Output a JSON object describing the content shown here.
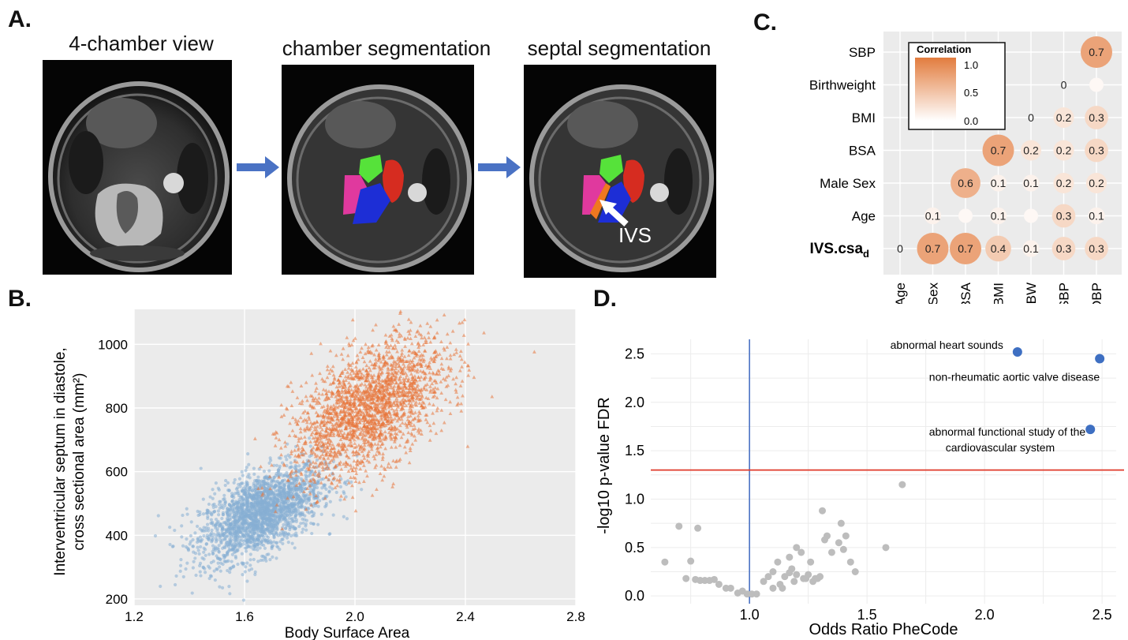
{
  "panel_a": {
    "label": "A.",
    "images": [
      {
        "title": "4-chamber view"
      },
      {
        "title": "chamber segmentation"
      },
      {
        "title": "septal segmentation",
        "arrow_label": "IVS"
      }
    ],
    "seg_colors": {
      "ra": "#e0399e",
      "la": "#d62c20",
      "lv_green": "#56e23a",
      "rv": "#1d2ed6",
      "septum": "#f07820",
      "arrow": "#4a72c4"
    }
  },
  "panel_b": {
    "label": "B."
  },
  "panel_c": {
    "label": "C."
  },
  "panel_d": {
    "label": "D."
  },
  "chart_data": [
    {
      "type": "scatter",
      "panel": "B.",
      "xlabel": "Body Surface Area",
      "ylabel": "Interventricular septum in diastole, cross sectional area (mm²)",
      "ylabel_lines": [
        "Interventricular septum in diastole,",
        "cross sectional area (mm²)"
      ],
      "xlim": [
        1.2,
        2.8
      ],
      "ylim": [
        180,
        1110
      ],
      "xticks": [
        1.2,
        1.6,
        2.0,
        2.4,
        2.8
      ],
      "xtick_labels": [
        "1.2",
        "1.6",
        "2.0",
        "2.4",
        "2.8"
      ],
      "yticks": [
        200,
        400,
        600,
        800,
        1000
      ],
      "ytick_labels": [
        "200",
        "400",
        "600",
        "800",
        "1000"
      ],
      "grid": true,
      "series": [
        {
          "color": "#86aed3",
          "marker": "circle",
          "center": [
            1.66,
            470
          ],
          "spread": [
            0.11,
            75
          ],
          "n_points": 2200
        },
        {
          "color": "#e8773d",
          "marker": "triangle",
          "center": [
            2.05,
            800
          ],
          "spread": [
            0.14,
            110
          ],
          "n_points": 2200
        }
      ]
    },
    {
      "type": "heatmap",
      "panel": "C.",
      "legend_title": "Correlation",
      "legend_ticks": [
        "1.0",
        "0.5",
        "0.0"
      ],
      "legend_range": [
        0,
        1
      ],
      "rows": [
        "SBP",
        "Birthweight",
        "BMI",
        "BSA",
        "Male Sex",
        "Age",
        "IVS.csa"
      ],
      "row_subscript": {
        "6": "d"
      },
      "columns": [
        "Age",
        "Sex",
        "BSA",
        "BMI",
        "BW",
        "SBP",
        "DBP"
      ],
      "cells": [
        {
          "row": 0,
          "col": 6,
          "value": 0.7,
          "label": "0.7"
        },
        {
          "row": 1,
          "col": 5,
          "value": 0.0,
          "label": "0"
        },
        {
          "row": 1,
          "col": 6,
          "value": 0.05,
          "label": ""
        },
        {
          "row": 2,
          "col": 4,
          "value": 0.0,
          "label": "0"
        },
        {
          "row": 2,
          "col": 5,
          "value": 0.2,
          "label": "0.2"
        },
        {
          "row": 2,
          "col": 6,
          "value": 0.3,
          "label": "0.3"
        },
        {
          "row": 3,
          "col": 3,
          "value": 0.7,
          "label": "0.7"
        },
        {
          "row": 3,
          "col": 4,
          "value": 0.2,
          "label": "0.2"
        },
        {
          "row": 3,
          "col": 5,
          "value": 0.2,
          "label": "0.2"
        },
        {
          "row": 3,
          "col": 6,
          "value": 0.3,
          "label": "0.3"
        },
        {
          "row": 4,
          "col": 2,
          "value": 0.6,
          "label": "0.6"
        },
        {
          "row": 4,
          "col": 3,
          "value": 0.1,
          "label": "0.1"
        },
        {
          "row": 4,
          "col": 4,
          "value": 0.1,
          "label": "0.1"
        },
        {
          "row": 4,
          "col": 5,
          "value": 0.2,
          "label": "0.2"
        },
        {
          "row": 4,
          "col": 6,
          "value": 0.2,
          "label": "0.2"
        },
        {
          "row": 5,
          "col": 1,
          "value": 0.1,
          "label": "0.1"
        },
        {
          "row": 5,
          "col": 2,
          "value": 0.05,
          "label": ""
        },
        {
          "row": 5,
          "col": 3,
          "value": 0.1,
          "label": "0.1"
        },
        {
          "row": 5,
          "col": 4,
          "value": 0.05,
          "label": ""
        },
        {
          "row": 5,
          "col": 5,
          "value": 0.3,
          "label": "0.3"
        },
        {
          "row": 5,
          "col": 6,
          "value": 0.1,
          "label": "0.1"
        },
        {
          "row": 6,
          "col": 0,
          "value": 0.0,
          "label": "0"
        },
        {
          "row": 6,
          "col": 1,
          "value": 0.7,
          "label": "0.7"
        },
        {
          "row": 6,
          "col": 2,
          "value": 0.7,
          "label": "0.7"
        },
        {
          "row": 6,
          "col": 3,
          "value": 0.4,
          "label": "0.4"
        },
        {
          "row": 6,
          "col": 4,
          "value": 0.1,
          "label": "0.1"
        },
        {
          "row": 6,
          "col": 5,
          "value": 0.3,
          "label": "0.3"
        },
        {
          "row": 6,
          "col": 6,
          "value": 0.3,
          "label": "0.3"
        }
      ]
    },
    {
      "type": "scatter",
      "panel": "D.",
      "xlabel": "Odds Ratio PheCode",
      "ylabel": "-log10 p-value FDR",
      "xlim": [
        0.58,
        2.56
      ],
      "ylim": [
        -0.08,
        2.65
      ],
      "xticks": [
        1.0,
        1.5,
        2.0,
        2.5
      ],
      "xtick_labels": [
        "1.0",
        "1.5",
        "2.0",
        "2.5"
      ],
      "yticks": [
        0.0,
        0.5,
        1.0,
        1.5,
        2.0,
        2.5
      ],
      "ytick_labels": [
        "0.0",
        "0.5",
        "1.0",
        "1.5",
        "2.0",
        "2.5"
      ],
      "grid": true,
      "threshold_y": 1.3,
      "reference_x": 1.0,
      "highlighted": [
        {
          "x": 2.14,
          "y": 2.52,
          "label": "abnormal heart sounds",
          "label_lines": [
            "abnormal heart sounds"
          ]
        },
        {
          "x": 2.49,
          "y": 2.45,
          "label": "non-rheumatic aortic valve disease",
          "label_lines": [
            "non-rheumatic aortic valve disease"
          ]
        },
        {
          "x": 2.45,
          "y": 1.72,
          "label": "abnormal functional study of the cardiovascular system",
          "label_lines": [
            "abnormal functional study of the",
            "cardiovascular system"
          ]
        }
      ],
      "points": [
        [
          0.64,
          0.35
        ],
        [
          0.7,
          0.72
        ],
        [
          0.73,
          0.18
        ],
        [
          0.75,
          0.36
        ],
        [
          0.78,
          0.7
        ],
        [
          0.77,
          0.17
        ],
        [
          0.79,
          0.16
        ],
        [
          0.81,
          0.16
        ],
        [
          0.83,
          0.16
        ],
        [
          0.85,
          0.17
        ],
        [
          0.87,
          0.12
        ],
        [
          0.9,
          0.08
        ],
        [
          0.92,
          0.08
        ],
        [
          0.95,
          0.03
        ],
        [
          0.97,
          0.05
        ],
        [
          0.99,
          0.02
        ],
        [
          1.01,
          0.02
        ],
        [
          1.03,
          0.02
        ],
        [
          1.06,
          0.15
        ],
        [
          1.08,
          0.2
        ],
        [
          1.1,
          0.25
        ],
        [
          1.1,
          0.08
        ],
        [
          1.12,
          0.35
        ],
        [
          1.13,
          0.12
        ],
        [
          1.14,
          0.08
        ],
        [
          1.15,
          0.2
        ],
        [
          1.17,
          0.4
        ],
        [
          1.17,
          0.24
        ],
        [
          1.18,
          0.28
        ],
        [
          1.19,
          0.15
        ],
        [
          1.2,
          0.22
        ],
        [
          1.2,
          0.5
        ],
        [
          1.22,
          0.45
        ],
        [
          1.23,
          0.18
        ],
        [
          1.24,
          0.18
        ],
        [
          1.25,
          0.22
        ],
        [
          1.26,
          0.35
        ],
        [
          1.27,
          0.15
        ],
        [
          1.28,
          0.18
        ],
        [
          1.29,
          0.18
        ],
        [
          1.3,
          0.2
        ],
        [
          1.31,
          0.88
        ],
        [
          1.32,
          0.58
        ],
        [
          1.33,
          0.62
        ],
        [
          1.35,
          0.45
        ],
        [
          1.38,
          0.55
        ],
        [
          1.39,
          0.75
        ],
        [
          1.4,
          0.48
        ],
        [
          1.41,
          0.62
        ],
        [
          1.43,
          0.35
        ],
        [
          1.45,
          0.25
        ],
        [
          1.58,
          0.5
        ],
        [
          1.65,
          1.15
        ]
      ]
    }
  ]
}
